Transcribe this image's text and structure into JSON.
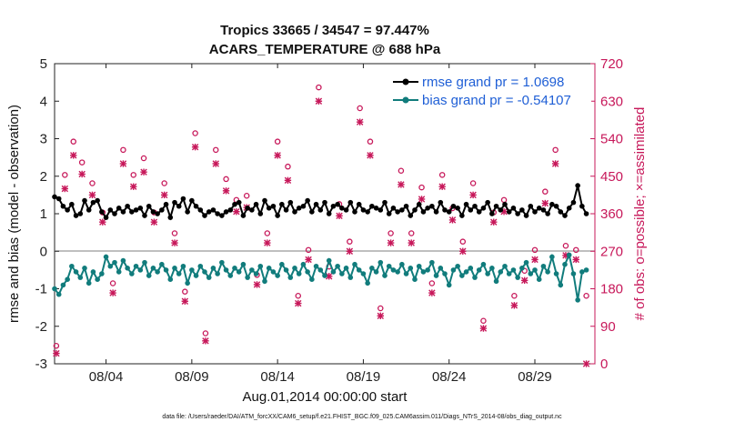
{
  "chart_data": {
    "type": "line",
    "title": "Tropics 33665 / 34547 = 97.447%",
    "subtitle": "ACARS_TEMPERATURE @ 688 hPa",
    "xlabel": "Aug.01,2014 00:00:00 start",
    "ylabel": "rmse and bias (model - observation)",
    "ylabel_right": "# of obs: o=possible; ×=assimilated",
    "ylim": [
      -3,
      5
    ],
    "ylim_right": [
      0,
      720
    ],
    "xlim": [
      1,
      32.5
    ],
    "x_ticks": [
      4,
      9,
      14,
      19,
      24,
      29
    ],
    "x_tick_labels": [
      "08/04",
      "08/09",
      "08/14",
      "08/19",
      "08/24",
      "08/29"
    ],
    "y_ticks": [
      -3,
      -2,
      -1,
      0,
      1,
      2,
      3,
      4,
      5
    ],
    "y_tick_labels": [
      "-3",
      "-2",
      "-1",
      "0",
      "1",
      "2",
      "3",
      "4",
      "5"
    ],
    "y_ticks_right": [
      0,
      90,
      180,
      270,
      360,
      450,
      540,
      630,
      720
    ],
    "y_tick_labels_right": [
      "0",
      "90",
      "180",
      "270",
      "360",
      "450",
      "540",
      "630",
      "720"
    ],
    "legend": [
      "rmse grand pr = 1.0698",
      "bias grand pr = -0.54107"
    ],
    "footer": "data file: /Users/raeder/DAI/ATM_forcXX/CAM6_setup/f.e21.FHIST_BGC.f09_025.CAM6assim.011/Diags_NTrS_2014-08/obs_diag_output.nc",
    "series": [
      {
        "name": "rmse",
        "color": "#000000",
        "x": [
          1.0,
          1.25,
          1.5,
          1.75,
          2.0,
          2.25,
          2.5,
          2.75,
          3.0,
          3.25,
          3.5,
          3.75,
          4.0,
          4.25,
          4.5,
          4.75,
          5.0,
          5.25,
          5.5,
          5.75,
          6.0,
          6.25,
          6.5,
          6.75,
          7.0,
          7.25,
          7.5,
          7.75,
          8.0,
          8.25,
          8.5,
          8.75,
          9.0,
          9.25,
          9.5,
          9.75,
          10.0,
          10.25,
          10.5,
          10.75,
          11.0,
          11.25,
          11.5,
          11.75,
          12.0,
          12.25,
          12.5,
          12.75,
          13.0,
          13.25,
          13.5,
          13.75,
          14.0,
          14.25,
          14.5,
          14.75,
          15.0,
          15.25,
          15.5,
          15.75,
          16.0,
          16.25,
          16.5,
          16.75,
          17.0,
          17.25,
          17.5,
          17.75,
          18.0,
          18.25,
          18.5,
          18.75,
          19.0,
          19.25,
          19.5,
          19.75,
          20.0,
          20.25,
          20.5,
          20.75,
          21.0,
          21.25,
          21.5,
          21.75,
          22.0,
          22.25,
          22.5,
          22.75,
          23.0,
          23.25,
          23.5,
          23.75,
          24.0,
          24.25,
          24.5,
          24.75,
          25.0,
          25.25,
          25.5,
          25.75,
          26.0,
          26.25,
          26.5,
          26.75,
          27.0,
          27.25,
          27.5,
          27.75,
          28.0,
          28.25,
          28.5,
          28.75,
          29.0,
          29.25,
          29.5,
          29.75,
          30.0,
          30.25,
          30.5,
          30.75,
          31.0,
          31.25,
          31.5,
          31.75,
          32.0
        ],
        "y": [
          1.45,
          1.4,
          1.2,
          1.1,
          1.25,
          0.95,
          1.0,
          1.35,
          1.1,
          1.3,
          1.35,
          1.05,
          0.9,
          1.1,
          1.0,
          1.15,
          1.05,
          1.2,
          1.05,
          1.1,
          1.15,
          0.95,
          1.2,
          1.05,
          1.0,
          1.1,
          1.25,
          0.9,
          1.3,
          1.2,
          1.4,
          1.05,
          1.35,
          1.2,
          1.1,
          0.95,
          1.05,
          1.1,
          1.0,
          0.95,
          1.05,
          1.1,
          1.25,
          1.3,
          0.95,
          1.15,
          1.1,
          1.25,
          1.0,
          1.35,
          1.15,
          1.2,
          0.95,
          1.25,
          1.1,
          1.3,
          1.05,
          1.15,
          1.2,
          1.35,
          1.05,
          1.25,
          1.1,
          1.3,
          1.0,
          1.2,
          1.25,
          1.15,
          1.1,
          1.3,
          1.05,
          1.25,
          1.1,
          1.05,
          1.2,
          1.15,
          1.1,
          1.3,
          1.0,
          1.15,
          1.05,
          1.1,
          1.2,
          0.95,
          1.1,
          1.25,
          1.05,
          1.15,
          1.2,
          1.05,
          1.3,
          1.1,
          1.05,
          1.2,
          1.15,
          0.95,
          1.25,
          1.1,
          1.2,
          1.05,
          1.15,
          1.3,
          1.0,
          1.2,
          1.1,
          1.25,
          1.05,
          1.15,
          1.0,
          1.1,
          0.95,
          1.2,
          1.05,
          1.15,
          1.1,
          1.0,
          1.25,
          1.2,
          1.05,
          0.95,
          1.15,
          1.3,
          1.75,
          1.2,
          1.0
        ]
      },
      {
        "name": "bias",
        "color": "#117c7c",
        "x": [
          1.0,
          1.25,
          1.5,
          1.75,
          2.0,
          2.25,
          2.5,
          2.75,
          3.0,
          3.25,
          3.5,
          3.75,
          4.0,
          4.25,
          4.5,
          4.75,
          5.0,
          5.25,
          5.5,
          5.75,
          6.0,
          6.25,
          6.5,
          6.75,
          7.0,
          7.25,
          7.5,
          7.75,
          8.0,
          8.25,
          8.5,
          8.75,
          9.0,
          9.25,
          9.5,
          9.75,
          10.0,
          10.25,
          10.5,
          10.75,
          11.0,
          11.25,
          11.5,
          11.75,
          12.0,
          12.25,
          12.5,
          12.75,
          13.0,
          13.25,
          13.5,
          13.75,
          14.0,
          14.25,
          14.5,
          14.75,
          15.0,
          15.25,
          15.5,
          15.75,
          16.0,
          16.25,
          16.5,
          16.75,
          17.0,
          17.25,
          17.5,
          17.75,
          18.0,
          18.25,
          18.5,
          18.75,
          19.0,
          19.25,
          19.5,
          19.75,
          20.0,
          20.25,
          20.5,
          20.75,
          21.0,
          21.25,
          21.5,
          21.75,
          22.0,
          22.25,
          22.5,
          22.75,
          23.0,
          23.25,
          23.5,
          23.75,
          24.0,
          24.25,
          24.5,
          24.75,
          25.0,
          25.25,
          25.5,
          25.75,
          26.0,
          26.25,
          26.5,
          26.75,
          27.0,
          27.25,
          27.5,
          27.75,
          28.0,
          28.25,
          28.5,
          28.75,
          29.0,
          29.25,
          29.5,
          29.75,
          30.0,
          30.25,
          30.5,
          30.75,
          31.0,
          31.25,
          31.5,
          31.75,
          32.0
        ],
        "y": [
          -1.0,
          -1.15,
          -0.9,
          -0.75,
          -0.4,
          -0.55,
          -0.7,
          -0.45,
          -0.85,
          -0.55,
          -0.75,
          -0.6,
          -0.15,
          -0.4,
          -0.3,
          -0.55,
          -0.25,
          -0.45,
          -0.6,
          -0.4,
          -0.5,
          -0.3,
          -0.65,
          -0.45,
          -0.55,
          -0.35,
          -0.5,
          -0.75,
          -0.45,
          -0.6,
          -0.4,
          -0.85,
          -0.5,
          -0.65,
          -0.4,
          -0.55,
          -0.7,
          -0.45,
          -0.6,
          -0.3,
          -0.5,
          -0.65,
          -0.45,
          -0.55,
          -0.35,
          -0.7,
          -0.5,
          -0.6,
          -0.4,
          -0.8,
          -0.45,
          -0.55,
          -0.65,
          -0.35,
          -0.5,
          -0.7,
          -0.45,
          -0.6,
          -0.35,
          -0.55,
          -0.75,
          -0.4,
          -0.5,
          -0.65,
          -0.25,
          -0.55,
          -0.4,
          -0.6,
          -0.45,
          -0.7,
          -0.35,
          -0.5,
          -0.6,
          -0.85,
          -0.45,
          -0.55,
          -0.3,
          -0.65,
          -0.4,
          -0.5,
          -0.55,
          -0.35,
          -0.6,
          -0.45,
          -0.75,
          -0.4,
          -0.55,
          -0.5,
          -0.3,
          -0.65,
          -0.45,
          -0.6,
          -0.9,
          -0.5,
          -0.4,
          -0.65,
          -0.55,
          -0.45,
          -0.7,
          -0.5,
          -0.35,
          -0.6,
          -0.45,
          -0.8,
          -0.55,
          -0.4,
          -0.6,
          -0.5,
          -0.7,
          -0.45,
          -0.3,
          -0.6,
          -0.5,
          -0.75,
          -0.4,
          -0.55,
          -0.15,
          -0.6,
          -0.9,
          -0.35,
          -0.1,
          -0.6,
          -1.3,
          -0.55,
          -0.5
        ]
      }
    ],
    "obs_possible": {
      "name": "possible",
      "marker": "o",
      "color": "#c7185a",
      "x": [
        1.1,
        1.6,
        2.1,
        2.6,
        3.2,
        3.8,
        4.4,
        5.0,
        5.6,
        6.2,
        6.8,
        7.4,
        8.0,
        8.6,
        9.2,
        9.8,
        10.4,
        11.0,
        11.6,
        12.2,
        12.8,
        13.4,
        14.0,
        14.6,
        15.2,
        15.8,
        16.4,
        17.0,
        17.6,
        18.2,
        18.8,
        19.4,
        20.0,
        20.6,
        21.2,
        21.8,
        22.4,
        23.0,
        23.6,
        24.2,
        24.8,
        25.4,
        26.0,
        26.6,
        27.2,
        27.8,
        28.4,
        29.0,
        29.6,
        30.2,
        30.8,
        31.4,
        32.0
      ],
      "y": [
        30,
        440,
        520,
        470,
        420,
        350,
        180,
        500,
        440,
        480,
        350,
        420,
        300,
        160,
        540,
        60,
        500,
        430,
        380,
        390,
        200,
        300,
        520,
        460,
        150,
        260,
        650,
        220,
        370,
        280,
        600,
        520,
        120,
        300,
        450,
        300,
        410,
        180,
        440,
        360,
        280,
        420,
        90,
        350,
        380,
        150,
        210,
        260,
        400,
        500,
        270,
        260,
        150
      ]
    },
    "obs_assimilated": {
      "name": "assimilated",
      "marker": "x",
      "color": "#c7185a",
      "x": [
        1.1,
        1.6,
        2.1,
        2.6,
        3.2,
        3.8,
        4.4,
        5.0,
        5.6,
        6.2,
        6.8,
        7.4,
        8.0,
        8.6,
        9.2,
        9.8,
        10.4,
        11.0,
        11.6,
        12.2,
        12.8,
        13.4,
        14.0,
        14.6,
        15.2,
        15.8,
        16.4,
        17.0,
        17.6,
        18.2,
        18.8,
        19.4,
        20.0,
        20.6,
        21.2,
        21.8,
        22.4,
        23.0,
        23.6,
        24.2,
        24.8,
        25.4,
        26.0,
        26.6,
        27.2,
        27.8,
        28.4,
        29.0,
        29.6,
        30.2,
        30.8,
        31.4,
        32.0
      ],
      "y": [
        25,
        420,
        500,
        455,
        405,
        340,
        170,
        480,
        425,
        460,
        340,
        405,
        290,
        150,
        520,
        55,
        480,
        415,
        365,
        375,
        190,
        290,
        500,
        440,
        145,
        250,
        630,
        210,
        355,
        270,
        580,
        500,
        115,
        290,
        430,
        290,
        395,
        170,
        425,
        345,
        270,
        405,
        85,
        340,
        365,
        140,
        200,
        250,
        385,
        480,
        260,
        250,
        0
      ]
    }
  }
}
